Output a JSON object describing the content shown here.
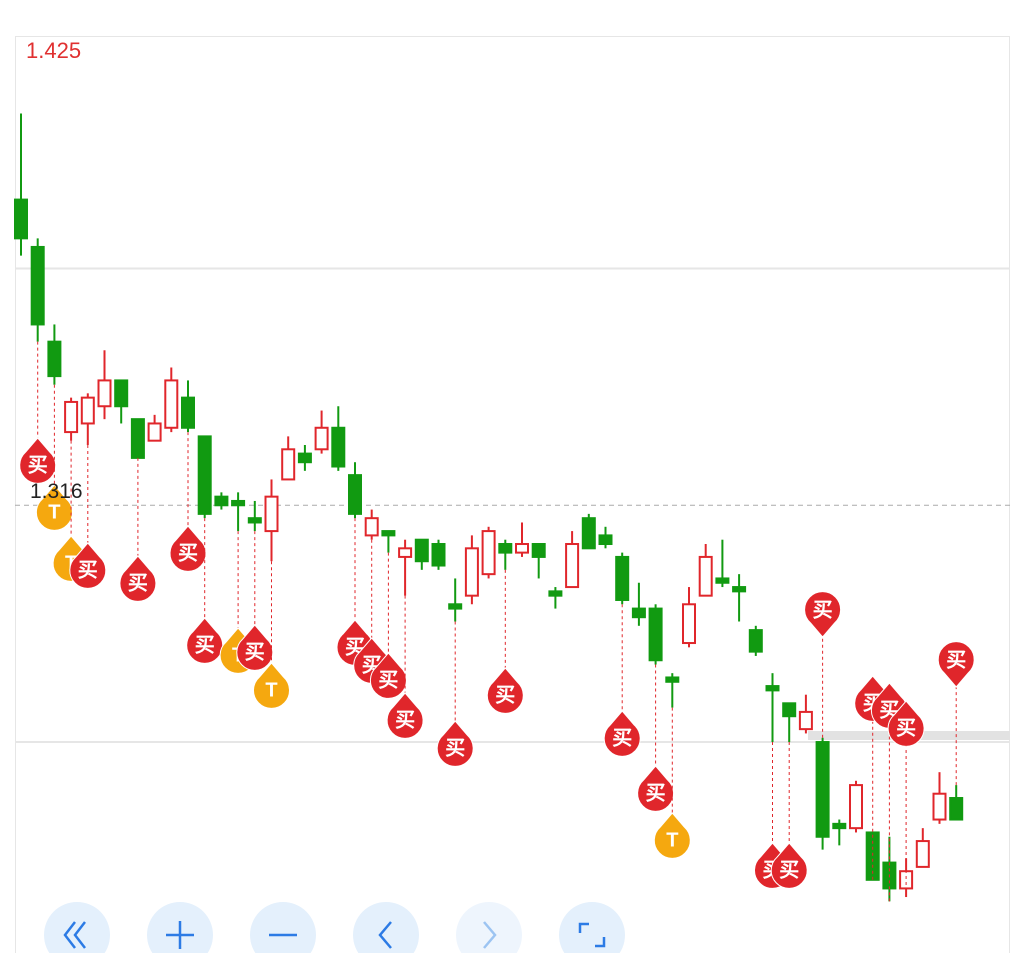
{
  "chart_data": {
    "type": "candlestick",
    "ylim": [
      1.212,
      1.425
    ],
    "yticks": [
      1.425
    ],
    "price_line": 1.316,
    "hgrid": [
      1.371,
      1.261
    ],
    "up_color": "#e0262b",
    "down_color": "#119a11",
    "open": [
      1.387,
      1.376,
      1.354,
      1.333,
      1.335,
      1.339,
      1.345,
      1.336,
      1.331,
      1.334,
      1.341,
      1.332,
      1.318,
      1.317,
      1.313,
      1.31,
      1.322,
      1.328,
      1.329,
      1.334,
      1.323,
      1.309,
      1.31,
      1.304,
      1.308,
      1.307,
      1.293,
      1.295,
      1.3,
      1.307,
      1.305,
      1.307,
      1.296,
      1.297,
      1.313,
      1.309,
      1.304,
      1.292,
      1.292,
      1.276,
      1.284,
      1.295,
      1.299,
      1.297,
      1.287,
      1.274,
      1.27,
      1.264,
      1.261,
      1.242,
      1.241,
      1.24,
      1.233,
      1.227,
      1.232,
      1.243,
      1.248
    ],
    "high": [
      1.407,
      1.378,
      1.358,
      1.341,
      1.342,
      1.352,
      1.345,
      1.336,
      1.337,
      1.348,
      1.345,
      1.332,
      1.319,
      1.319,
      1.317,
      1.322,
      1.332,
      1.33,
      1.338,
      1.339,
      1.326,
      1.315,
      1.31,
      1.308,
      1.308,
      1.308,
      1.299,
      1.309,
      1.311,
      1.308,
      1.312,
      1.307,
      1.297,
      1.31,
      1.314,
      1.311,
      1.305,
      1.298,
      1.293,
      1.277,
      1.297,
      1.307,
      1.308,
      1.3,
      1.288,
      1.277,
      1.27,
      1.272,
      1.262,
      1.243,
      1.252,
      1.24,
      1.239,
      1.234,
      1.241,
      1.254,
      1.251
    ],
    "low": [
      1.374,
      1.354,
      1.344,
      1.331,
      1.33,
      1.336,
      1.335,
      1.327,
      1.331,
      1.333,
      1.333,
      1.313,
      1.315,
      1.31,
      1.31,
      1.303,
      1.322,
      1.324,
      1.328,
      1.324,
      1.313,
      1.308,
      1.305,
      1.295,
      1.301,
      1.301,
      1.289,
      1.293,
      1.299,
      1.301,
      1.304,
      1.299,
      1.292,
      1.297,
      1.306,
      1.306,
      1.293,
      1.288,
      1.279,
      1.269,
      1.283,
      1.295,
      1.297,
      1.289,
      1.281,
      1.261,
      1.261,
      1.263,
      1.236,
      1.237,
      1.24,
      1.229,
      1.224,
      1.225,
      1.232,
      1.242,
      1.243
    ],
    "close": [
      1.378,
      1.358,
      1.346,
      1.34,
      1.341,
      1.345,
      1.339,
      1.327,
      1.335,
      1.345,
      1.334,
      1.314,
      1.316,
      1.316,
      1.312,
      1.318,
      1.329,
      1.326,
      1.334,
      1.325,
      1.314,
      1.313,
      1.309,
      1.306,
      1.303,
      1.302,
      1.292,
      1.306,
      1.31,
      1.305,
      1.307,
      1.304,
      1.295,
      1.307,
      1.306,
      1.307,
      1.294,
      1.29,
      1.28,
      1.275,
      1.293,
      1.304,
      1.298,
      1.296,
      1.282,
      1.273,
      1.267,
      1.268,
      1.239,
      1.241,
      1.251,
      1.229,
      1.227,
      1.231,
      1.238,
      1.249,
      1.243
    ],
    "markers": [
      {
        "index": 1,
        "label": "买"
      },
      {
        "index": 2,
        "label": "T"
      },
      {
        "index": 3,
        "label": "T"
      },
      {
        "index": 4,
        "label": "买"
      },
      {
        "index": 7,
        "label": "买"
      },
      {
        "index": 10,
        "label": "买"
      },
      {
        "index": 11,
        "label": "买"
      },
      {
        "index": 13,
        "label": "T"
      },
      {
        "index": 14,
        "label": "买"
      },
      {
        "index": 15,
        "label": "T"
      },
      {
        "index": 20,
        "label": "买"
      },
      {
        "index": 21,
        "label": "买"
      },
      {
        "index": 22,
        "label": "买"
      },
      {
        "index": 23,
        "label": "买"
      },
      {
        "index": 26,
        "label": "买"
      },
      {
        "index": 29,
        "label": "买"
      },
      {
        "index": 36,
        "label": "买"
      },
      {
        "index": 38,
        "label": "买"
      },
      {
        "index": 39,
        "label": "T"
      },
      {
        "index": 45,
        "label": "买"
      },
      {
        "index": 46,
        "label": "买"
      },
      {
        "index": 48,
        "label": "买"
      },
      {
        "index": 51,
        "label": "买"
      },
      {
        "index": 52,
        "label": "买"
      },
      {
        "index": 53,
        "label": "买"
      },
      {
        "index": 56,
        "label": "买"
      }
    ]
  }
}
